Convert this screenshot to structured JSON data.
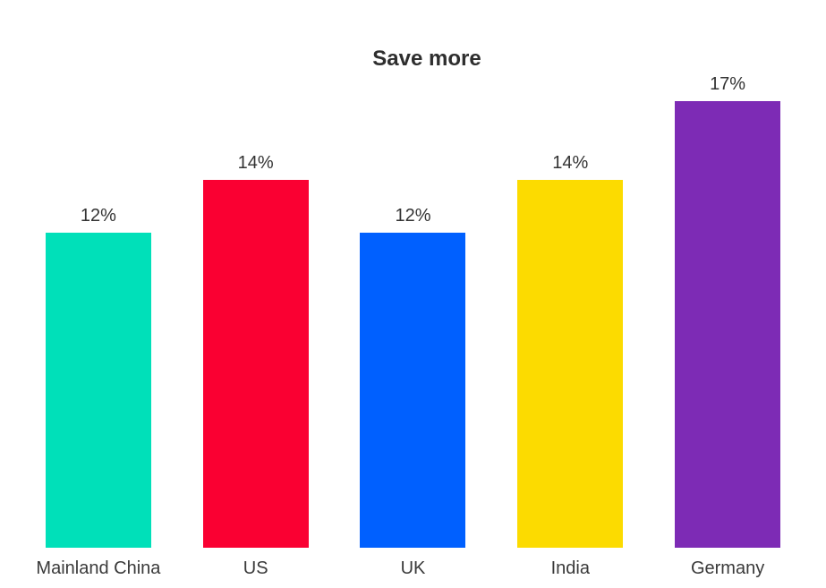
{
  "page": {
    "background": "#ffffff"
  },
  "chart_data": {
    "type": "bar",
    "title": "Save more",
    "categories": [
      "Mainland China",
      "US",
      "UK",
      "India",
      "Germany"
    ],
    "values": [
      12,
      14,
      12,
      14,
      17
    ],
    "value_labels": [
      "12%",
      "14%",
      "12%",
      "14%",
      "17%"
    ],
    "bar_colors": [
      "#00e0b9",
      "#fa0032",
      "#0060ff",
      "#fcdb00",
      "#7d2bb5"
    ],
    "unit": "%",
    "xlabel": "",
    "ylabel": "",
    "ylim": [
      0,
      17
    ],
    "grid": false,
    "legend": false,
    "axis_line": false,
    "data_label_position": "above-bar",
    "title_color": "#2e2e2e",
    "label_color": "#333333"
  }
}
